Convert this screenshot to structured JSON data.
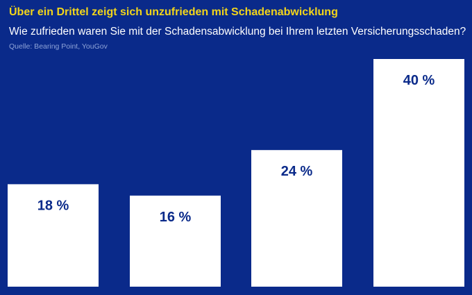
{
  "header": {
    "title": "Über ein Drittel zeigt sich unzufrieden mit Schadenabwicklung",
    "subtitle": "Wie zufrieden waren Sie mit der Schadensabwicklung bei Ihrem letzten Versicherungsschaden?",
    "source": "Quelle: Bearing Point, YouGov"
  },
  "colors": {
    "background": "#0a2a8a",
    "title": "#f2d51b",
    "bar": "#ffffff",
    "bar_label": "#0a2a8a"
  },
  "chart_data": {
    "type": "bar",
    "title": "Über ein Drittel zeigt sich unzufrieden mit Schadenabwicklung",
    "subtitle": "Wie zufrieden waren Sie mit der Schadensabwicklung bei Ihrem letzten Versicherungsschaden?",
    "categories": [
      "",
      "",
      "",
      ""
    ],
    "values": [
      18,
      16,
      24,
      40
    ],
    "labels": [
      "18 %",
      "16 %",
      "24 %",
      "40 %"
    ],
    "unit": "%",
    "xlabel": "",
    "ylabel": "",
    "ylim": [
      0,
      40
    ],
    "grid": false,
    "legend": "none"
  }
}
